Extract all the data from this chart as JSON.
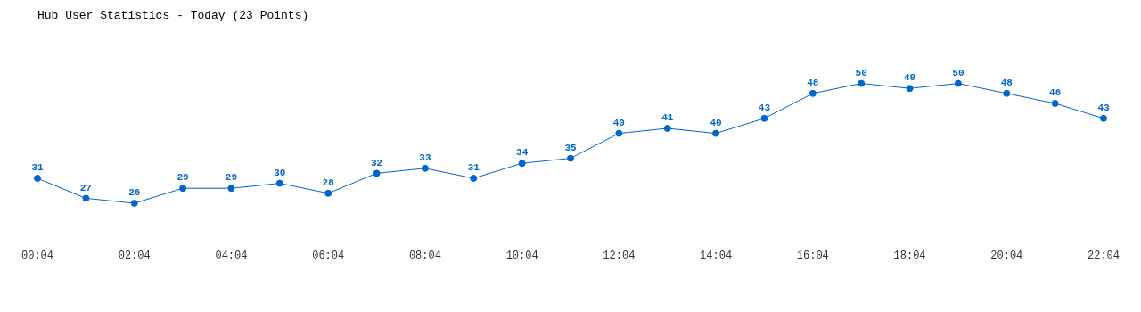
{
  "chart_data": {
    "type": "line",
    "title": "Hub User Statistics - Today (23 Points)",
    "categories": [
      "00:04",
      null,
      "02:04",
      null,
      "04:04",
      null,
      "06:04",
      null,
      "08:04",
      null,
      "10:04",
      null,
      "12:04",
      null,
      "14:04",
      null,
      "16:04",
      null,
      "18:04",
      null,
      "20:04",
      null,
      "22:04"
    ],
    "series": [
      {
        "color": "#0066cc",
        "values": [
          31,
          27,
          26,
          29,
          29,
          30,
          28,
          32,
          33,
          31,
          34,
          35,
          40,
          41,
          40,
          43,
          48,
          50,
          49,
          50,
          48,
          46,
          43
        ]
      }
    ],
    "data_labels": true,
    "marker": "circle",
    "grid": false,
    "legend": false,
    "line_style": "solid"
  }
}
